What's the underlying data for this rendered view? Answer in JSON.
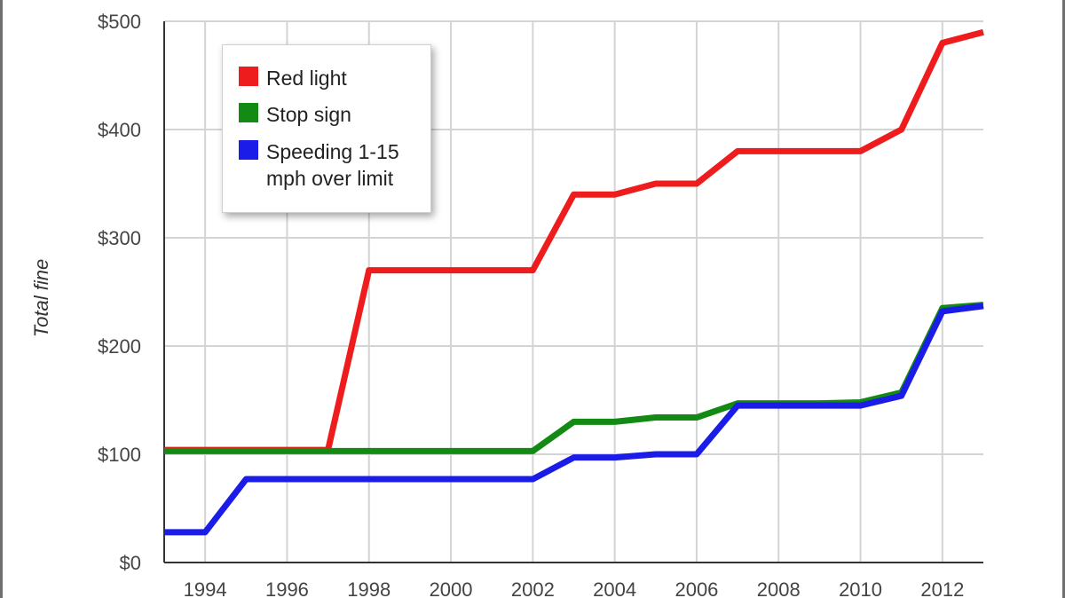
{
  "chart_data": {
    "type": "line",
    "title": "",
    "xlabel": "",
    "ylabel": "Total fine",
    "x": [
      1993,
      1994,
      1995,
      1996,
      1997,
      1998,
      1999,
      2000,
      2001,
      2002,
      2003,
      2004,
      2005,
      2006,
      2007,
      2008,
      2009,
      2010,
      2011,
      2012,
      2013
    ],
    "xticks": [
      "1994",
      "1996",
      "1998",
      "2000",
      "2002",
      "2004",
      "2006",
      "2008",
      "2010",
      "2012"
    ],
    "xtick_values": [
      1994,
      1996,
      1998,
      2000,
      2002,
      2004,
      2006,
      2008,
      2010,
      2012
    ],
    "yticks": [
      "$0",
      "$100",
      "$200",
      "$300",
      "$400",
      "$500"
    ],
    "ytick_values": [
      0,
      100,
      200,
      300,
      400,
      500
    ],
    "xlim": [
      1993,
      2013
    ],
    "ylim": [
      0,
      500
    ],
    "grid": true,
    "legend_position": "top-left",
    "series": [
      {
        "name": "Red light",
        "color": "#ee1c1c",
        "values": [
          104,
          104,
          104,
          104,
          104,
          270,
          270,
          270,
          270,
          270,
          340,
          340,
          350,
          350,
          380,
          380,
          380,
          380,
          400,
          480,
          490
        ]
      },
      {
        "name": "Stop sign",
        "color": "#138a13",
        "values": [
          103,
          103,
          103,
          103,
          103,
          103,
          103,
          103,
          103,
          103,
          130,
          130,
          134,
          134,
          147,
          147,
          147,
          148,
          157,
          235,
          238
        ]
      },
      {
        "name": "Speeding 1-15\nmph over limit",
        "color": "#1c1ce8",
        "values": [
          28,
          28,
          77,
          77,
          77,
          77,
          77,
          77,
          77,
          77,
          97,
          97,
          100,
          100,
          145,
          145,
          145,
          145,
          154,
          232,
          237
        ]
      }
    ]
  }
}
